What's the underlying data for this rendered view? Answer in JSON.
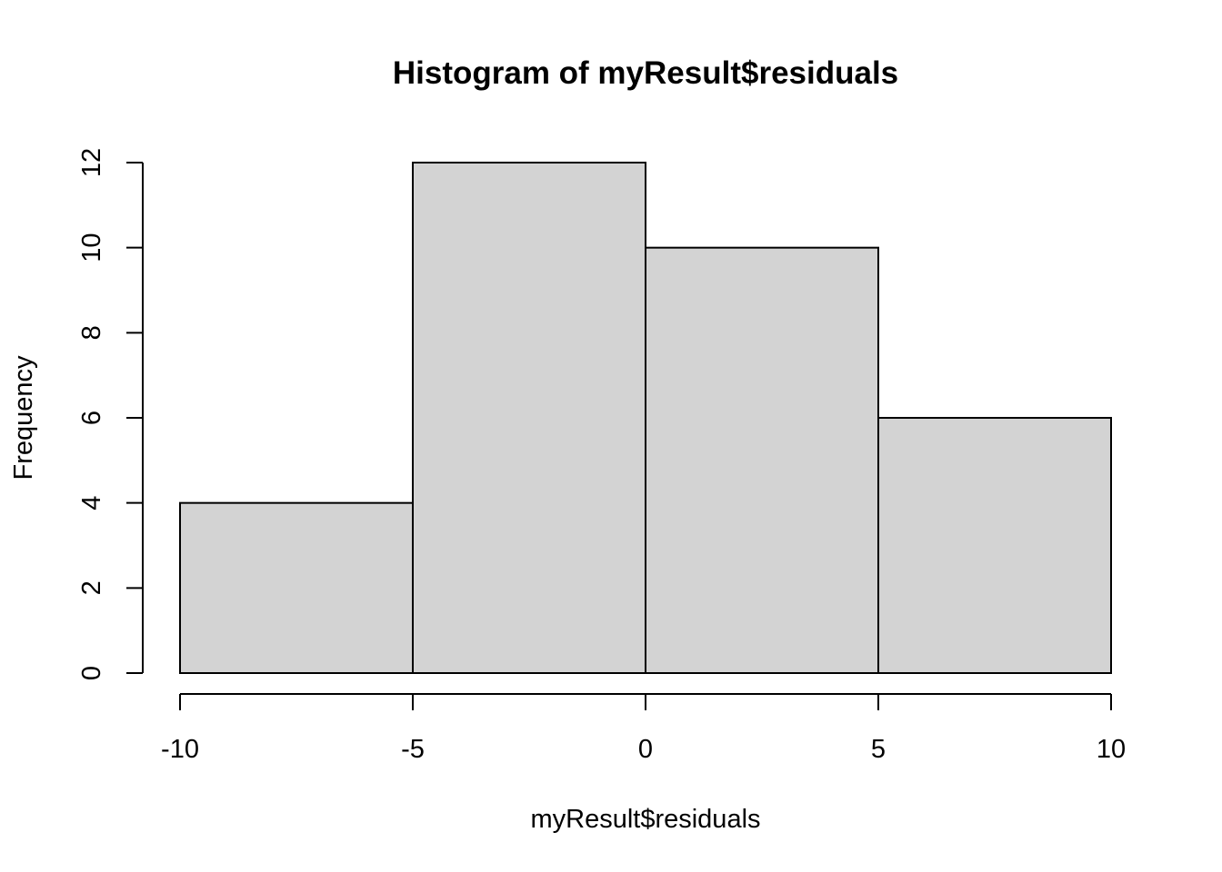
{
  "chart_data": {
    "type": "bar",
    "histogram": true,
    "title": "Histogram of myResult$residuals",
    "xlabel": "myResult$residuals",
    "ylabel": "Frequency",
    "bin_edges": [
      -10,
      -5,
      0,
      5,
      10
    ],
    "values": [
      4,
      12,
      10,
      6
    ],
    "xlim": [
      -10,
      10
    ],
    "ylim": [
      0,
      12
    ],
    "x_ticks": [
      -10,
      -5,
      0,
      5,
      10
    ],
    "x_tick_labels": [
      "-10",
      "-5",
      "0",
      "5",
      "10"
    ],
    "y_ticks": [
      0,
      2,
      4,
      6,
      8,
      10,
      12
    ],
    "y_tick_labels": [
      "0",
      "2",
      "4",
      "6",
      "8",
      "10",
      "12"
    ],
    "grid": false,
    "bar_color": "#d3d3d3",
    "border_color": "#000000"
  }
}
